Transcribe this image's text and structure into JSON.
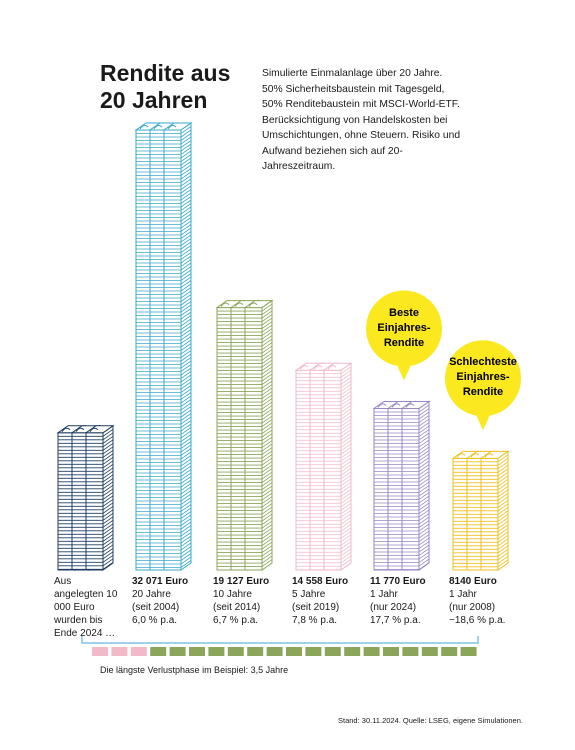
{
  "chart_data": {
    "type": "bar",
    "title": "Rendite aus 20 Jahren",
    "subtitle": "Simulierte Einmalanlage über 20 Jahre.\n50% Sicherheitsbaustein mit Tagesgeld,\n50% Renditebaustein mit MSCI-World-ETF.\nBerücksichtigung von Handelskosten bei Umschichtungen, ohne Steuern. Risiko und Aufwand beziehen sich auf 20-Jahreszeitraum.",
    "categories": [
      "Aus angelegten 10 000 Euro wurden bis Ende 2024 …",
      "20 Jahre",
      "10 Jahre",
      "5 Jahre",
      "1 Jahr",
      "1 Jahr"
    ],
    "periods": [
      null,
      "(seit 2004)",
      "(seit 2014)",
      "(seit 2019)",
      "(nur 2024)",
      "(nur 2008)"
    ],
    "rates": [
      null,
      "6,0 % p.a.",
      "6,7 % p.a.",
      "7,8 % p.a.",
      "17,7 % p.a.",
      "−18,6 % p.a."
    ],
    "values": [
      10000,
      32071,
      19127,
      14558,
      11770,
      8140
    ],
    "value_labels": [
      null,
      "32 071 Euro",
      "19 127 Euro",
      "14 558 Euro",
      "11 770 Euro",
      "8140 Euro"
    ],
    "colors": [
      "#1f3d63",
      "#3aa9cc",
      "#8ba65a",
      "#f2b9c9",
      "#9a86c8",
      "#efbf1e"
    ],
    "annotations": [
      {
        "text": "Beste Einjahres-Rendite",
        "bar": 4
      },
      {
        "text": "Schlechteste Einjahres-Rendite",
        "bar": 5
      }
    ],
    "timeline_note": "Die längste Verlustphase im Beispiel: 3,5 Jahre",
    "source": "Stand: 30.11.2024. Quelle: LSEG, eigene Simulationen."
  }
}
